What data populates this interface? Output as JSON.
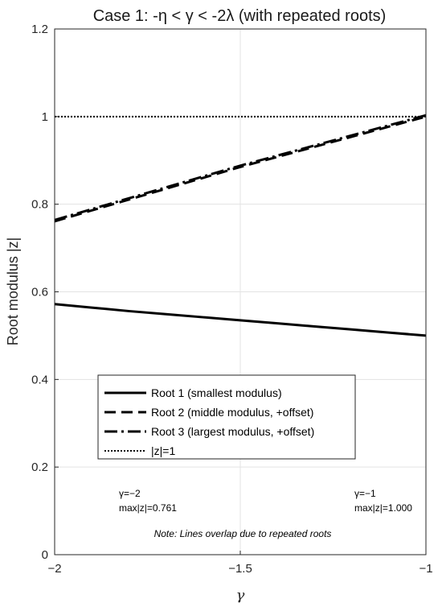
{
  "chart_data": {
    "type": "line",
    "title": "Case 1: -η < γ < -2λ (with repeated roots)",
    "xlabel": "γ",
    "ylabel": "Root modulus |z|",
    "xlim": [
      -2,
      -1
    ],
    "ylim": [
      0,
      1.2
    ],
    "xticks": [
      -2,
      -1.5,
      -1
    ],
    "xtick_labels": [
      "−2",
      "−1.5",
      "−1"
    ],
    "yticks": [
      0,
      0.2,
      0.4,
      0.6,
      0.8,
      1,
      1.2
    ],
    "ytick_labels": [
      "0",
      "0.2",
      "0.4",
      "0.6",
      "0.8",
      "1",
      "1.2"
    ],
    "grid": true,
    "legend_position": "lower-center",
    "series": [
      {
        "name": "Root 1 (smallest modulus)",
        "style": "solid",
        "width": 3,
        "x": [
          -2,
          -1.9,
          -1.8,
          -1.7,
          -1.6,
          -1.5,
          -1.4,
          -1.3,
          -1.2,
          -1.1,
          -1
        ],
        "y": [
          0.572,
          0.564,
          0.556,
          0.549,
          0.542,
          0.535,
          0.528,
          0.521,
          0.514,
          0.507,
          0.5
        ]
      },
      {
        "name": "Root 2 (middle modulus, +offset)",
        "style": "dashed",
        "width": 3,
        "x": [
          -2,
          -1.5,
          -1
        ],
        "y": [
          0.761,
          0.885,
          1.0
        ]
      },
      {
        "name": "Root 3 (largest modulus, +offset)",
        "style": "dashdot",
        "width": 3,
        "x": [
          -2,
          -1.5,
          -1
        ],
        "y": [
          0.764,
          0.888,
          1.003
        ]
      },
      {
        "name": "|z|=1",
        "style": "dotted",
        "width": 2,
        "x": [
          -2,
          -1
        ],
        "y": [
          1,
          1
        ]
      }
    ],
    "annotations": [
      {
        "x": -2,
        "y": 0.19,
        "lines": [
          "γ=−2",
          "max|z|=0.761"
        ]
      },
      {
        "x": -1,
        "y": 0.19,
        "lines": [
          "γ=−1",
          "max|z|=1.000"
        ]
      }
    ],
    "note": "Note: Lines overlap due to repeated roots"
  }
}
